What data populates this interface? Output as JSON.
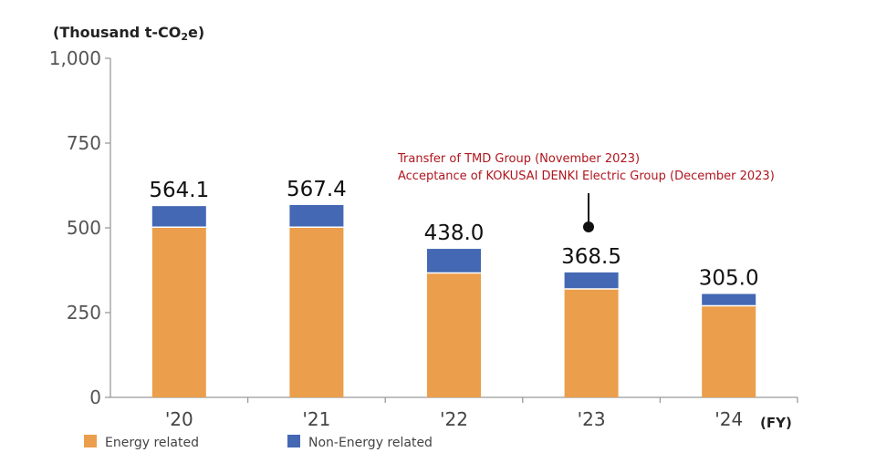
{
  "chart_data": {
    "type": "bar",
    "stacked": true,
    "unit_label": {
      "prefix": "(Thousand t-CO",
      "sub": "2",
      "suffix": "e)"
    },
    "x_unit_label": "(FY)",
    "categories": [
      "'20",
      "'21",
      "'22",
      "'23",
      "'24"
    ],
    "series": [
      {
        "name": "Energy related",
        "color": "#EB9E4B",
        "values": [
          502,
          502,
          367,
          320,
          270
        ]
      },
      {
        "name": "Non-Energy related",
        "color": "#4468B3",
        "values": [
          62.1,
          65.4,
          71.0,
          48.5,
          35.0
        ]
      }
    ],
    "totals": [
      "564.1",
      "567.4",
      "438.0",
      "368.5",
      "305.0"
    ],
    "ylim": [
      0,
      1000
    ],
    "yticks": [
      "0",
      "250",
      "500",
      "750",
      "1,000"
    ],
    "ytick_values": [
      0,
      250,
      500,
      750,
      1000
    ],
    "grid": false,
    "legend_position": "bottom-left",
    "annotation": {
      "category": "'23",
      "lines": [
        "Transfer of TMD Group (November 2023)",
        "Acceptance of KOKUSAI DENKI Electric Group (December 2023)"
      ],
      "color": "#B0161E"
    }
  }
}
